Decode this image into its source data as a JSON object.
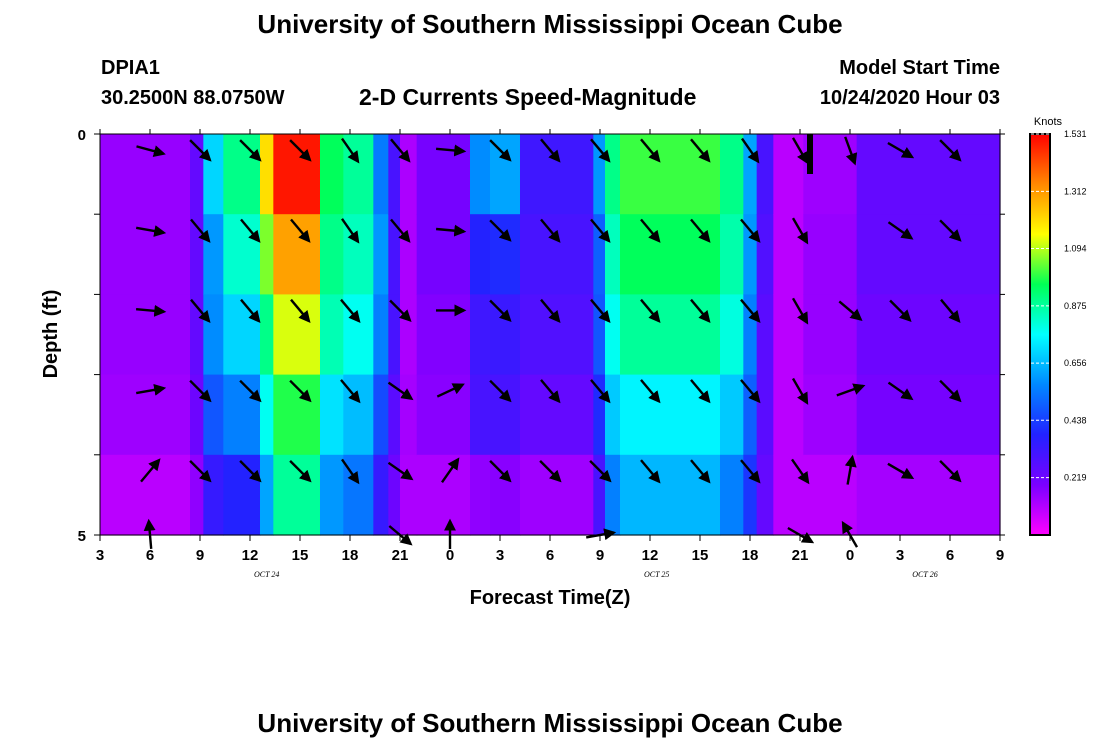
{
  "header": {
    "title": "University of Southern Mississippi Ocean Cube",
    "station": "DPIA1",
    "coords": "30.2500N 88.0750W",
    "subtitle": "2-D Currents Speed-Magnitude",
    "model_start_label": "Model Start Time",
    "model_start_value": "10/24/2020 Hour 03"
  },
  "footer": {
    "title": "University of Southern Mississippi Ocean Cube"
  },
  "chart_data": {
    "type": "heatmap",
    "title": "2-D Currents Speed-Magnitude",
    "xlabel": "Forecast Time(Z)",
    "ylabel": "Depth (ft)",
    "x_start_hour": 3,
    "x_end_hour": 57,
    "x_tick_labels": [
      "3",
      "6",
      "9",
      "12",
      "15",
      "18",
      "21",
      "0",
      "3",
      "6",
      "9",
      "12",
      "15",
      "18",
      "21",
      "0",
      "3",
      "6",
      "9"
    ],
    "date_labels": [
      {
        "text": "OCT 24",
        "hour": 13
      },
      {
        "text": "OCT 25",
        "hour": 36.4
      },
      {
        "text": "OCT 26",
        "hour": 52.5
      }
    ],
    "y_tick_labels": [
      "0",
      "5"
    ],
    "ylim": [
      0,
      5
    ],
    "depth_bins": 5,
    "colorbar": {
      "unit": "Knots",
      "vmin": 0.0,
      "vmax": 1.531,
      "tick_labels": [
        "1.531",
        "1.312",
        "1.094",
        "0.875",
        "0.656",
        "0.438",
        "0.219"
      ],
      "tick_values": [
        1.531,
        1.312,
        1.094,
        0.875,
        0.656,
        0.438,
        0.219
      ],
      "stops": [
        "#ff00ff",
        "#7a00ff",
        "#2222ff",
        "#0088ff",
        "#00ffff",
        "#00ff55",
        "#ffff00",
        "#ff8800",
        "#ff0000"
      ]
    },
    "columns": [
      {
        "start": 3,
        "end": 8.4,
        "values": [
          0.15,
          0.15,
          0.15,
          0.15,
          0.14,
          0.1
        ]
      },
      {
        "start": 8.4,
        "end": 9.2,
        "values": [
          0.24,
          0.24,
          0.24,
          0.24,
          0.22,
          0.16
        ]
      },
      {
        "start": 9.2,
        "end": 10.4,
        "values": [
          0.7,
          0.7,
          0.6,
          0.58,
          0.48,
          0.34
        ]
      },
      {
        "start": 10.4,
        "end": 12.6,
        "values": [
          0.9,
          0.9,
          0.82,
          0.7,
          0.56,
          0.38
        ]
      },
      {
        "start": 12.6,
        "end": 13.4,
        "values": [
          1.2,
          1.2,
          1.05,
          0.9,
          0.78,
          0.62
        ]
      },
      {
        "start": 13.4,
        "end": 16.2,
        "values": [
          1.5,
          1.5,
          1.3,
          1.12,
          0.98,
          0.88
        ]
      },
      {
        "start": 16.2,
        "end": 17.6,
        "values": [
          0.95,
          0.95,
          0.9,
          0.85,
          0.72,
          0.6
        ]
      },
      {
        "start": 17.6,
        "end": 19.4,
        "values": [
          0.88,
          0.88,
          0.84,
          0.78,
          0.66,
          0.54
        ]
      },
      {
        "start": 19.4,
        "end": 20.3,
        "values": [
          0.55,
          0.55,
          0.6,
          0.56,
          0.46,
          0.34
        ]
      },
      {
        "start": 20.3,
        "end": 21.0,
        "values": [
          0.3,
          0.3,
          0.3,
          0.3,
          0.26,
          0.22
        ]
      },
      {
        "start": 21.0,
        "end": 22.0,
        "values": [
          0.12,
          0.12,
          0.12,
          0.12,
          0.13,
          0.12
        ]
      },
      {
        "start": 22.0,
        "end": 25.2,
        "values": [
          0.2,
          0.2,
          0.2,
          0.18,
          0.17,
          0.12
        ]
      },
      {
        "start": 25.2,
        "end": 26.4,
        "values": [
          0.58,
          0.58,
          0.38,
          0.32,
          0.3,
          0.16
        ]
      },
      {
        "start": 26.4,
        "end": 28.2,
        "values": [
          0.62,
          0.62,
          0.4,
          0.33,
          0.3,
          0.17
        ]
      },
      {
        "start": 28.2,
        "end": 32.6,
        "values": [
          0.32,
          0.32,
          0.3,
          0.28,
          0.24,
          0.14
        ]
      },
      {
        "start": 32.6,
        "end": 33.3,
        "values": [
          0.6,
          0.6,
          0.5,
          0.48,
          0.4,
          0.3
        ]
      },
      {
        "start": 33.3,
        "end": 34.2,
        "values": [
          0.9,
          0.9,
          0.84,
          0.78,
          0.68,
          0.56
        ]
      },
      {
        "start": 34.2,
        "end": 40.2,
        "values": [
          1.0,
          1.0,
          0.95,
          0.88,
          0.75,
          0.65
        ]
      },
      {
        "start": 40.2,
        "end": 41.6,
        "values": [
          0.9,
          0.9,
          0.86,
          0.8,
          0.68,
          0.56
        ]
      },
      {
        "start": 41.6,
        "end": 42.4,
        "values": [
          0.62,
          0.62,
          0.6,
          0.56,
          0.5,
          0.42
        ]
      },
      {
        "start": 42.4,
        "end": 43.4,
        "values": [
          0.3,
          0.3,
          0.28,
          0.26,
          0.26,
          0.24
        ]
      },
      {
        "start": 43.4,
        "end": 45.2,
        "values": [
          0.1,
          0.1,
          0.1,
          0.1,
          0.1,
          0.1
        ]
      },
      {
        "start": 45.2,
        "end": 48.4,
        "values": [
          0.14,
          0.14,
          0.15,
          0.15,
          0.14,
          0.1
        ]
      },
      {
        "start": 48.4,
        "end": 57.0,
        "values": [
          0.24,
          0.24,
          0.24,
          0.22,
          0.2,
          0.13
        ]
      }
    ],
    "vector_rows_depth": [
      0.2,
      1.2,
      2.2,
      3.2,
      4.2,
      5.0
    ],
    "vectors": [
      {
        "hour": 6,
        "dirs": [
          105,
          100,
          95,
          80,
          40,
          355
        ]
      },
      {
        "hour": 9,
        "dirs": [
          135,
          140,
          140,
          135,
          135,
          null
        ]
      },
      {
        "hour": 12,
        "dirs": [
          135,
          140,
          140,
          135,
          135,
          null
        ]
      },
      {
        "hour": 15,
        "dirs": [
          135,
          140,
          140,
          135,
          135,
          null
        ]
      },
      {
        "hour": 18,
        "dirs": [
          145,
          145,
          140,
          140,
          145,
          null
        ]
      },
      {
        "hour": 21,
        "dirs": [
          140,
          140,
          135,
          125,
          125,
          130
        ]
      },
      {
        "hour": 24,
        "dirs": [
          95,
          95,
          90,
          65,
          35,
          0
        ]
      },
      {
        "hour": 27,
        "dirs": [
          135,
          135,
          135,
          135,
          135,
          null
        ]
      },
      {
        "hour": 30,
        "dirs": [
          140,
          140,
          140,
          140,
          135,
          null
        ]
      },
      {
        "hour": 33,
        "dirs": [
          140,
          140,
          140,
          140,
          135,
          80
        ]
      },
      {
        "hour": 36,
        "dirs": [
          140,
          140,
          140,
          140,
          140,
          null
        ]
      },
      {
        "hour": 39,
        "dirs": [
          140,
          140,
          140,
          140,
          140,
          null
        ]
      },
      {
        "hour": 42,
        "dirs": [
          145,
          140,
          140,
          140,
          140,
          null
        ]
      },
      {
        "hour": 45,
        "dirs": [
          150,
          150,
          150,
          150,
          145,
          120
        ]
      },
      {
        "hour": 48,
        "dirs": [
          160,
          null,
          130,
          70,
          10,
          330
        ]
      },
      {
        "hour": 51,
        "dirs": [
          120,
          125,
          135,
          125,
          120,
          null
        ]
      },
      {
        "hour": 54,
        "dirs": [
          135,
          135,
          140,
          135,
          135,
          null
        ]
      }
    ]
  }
}
